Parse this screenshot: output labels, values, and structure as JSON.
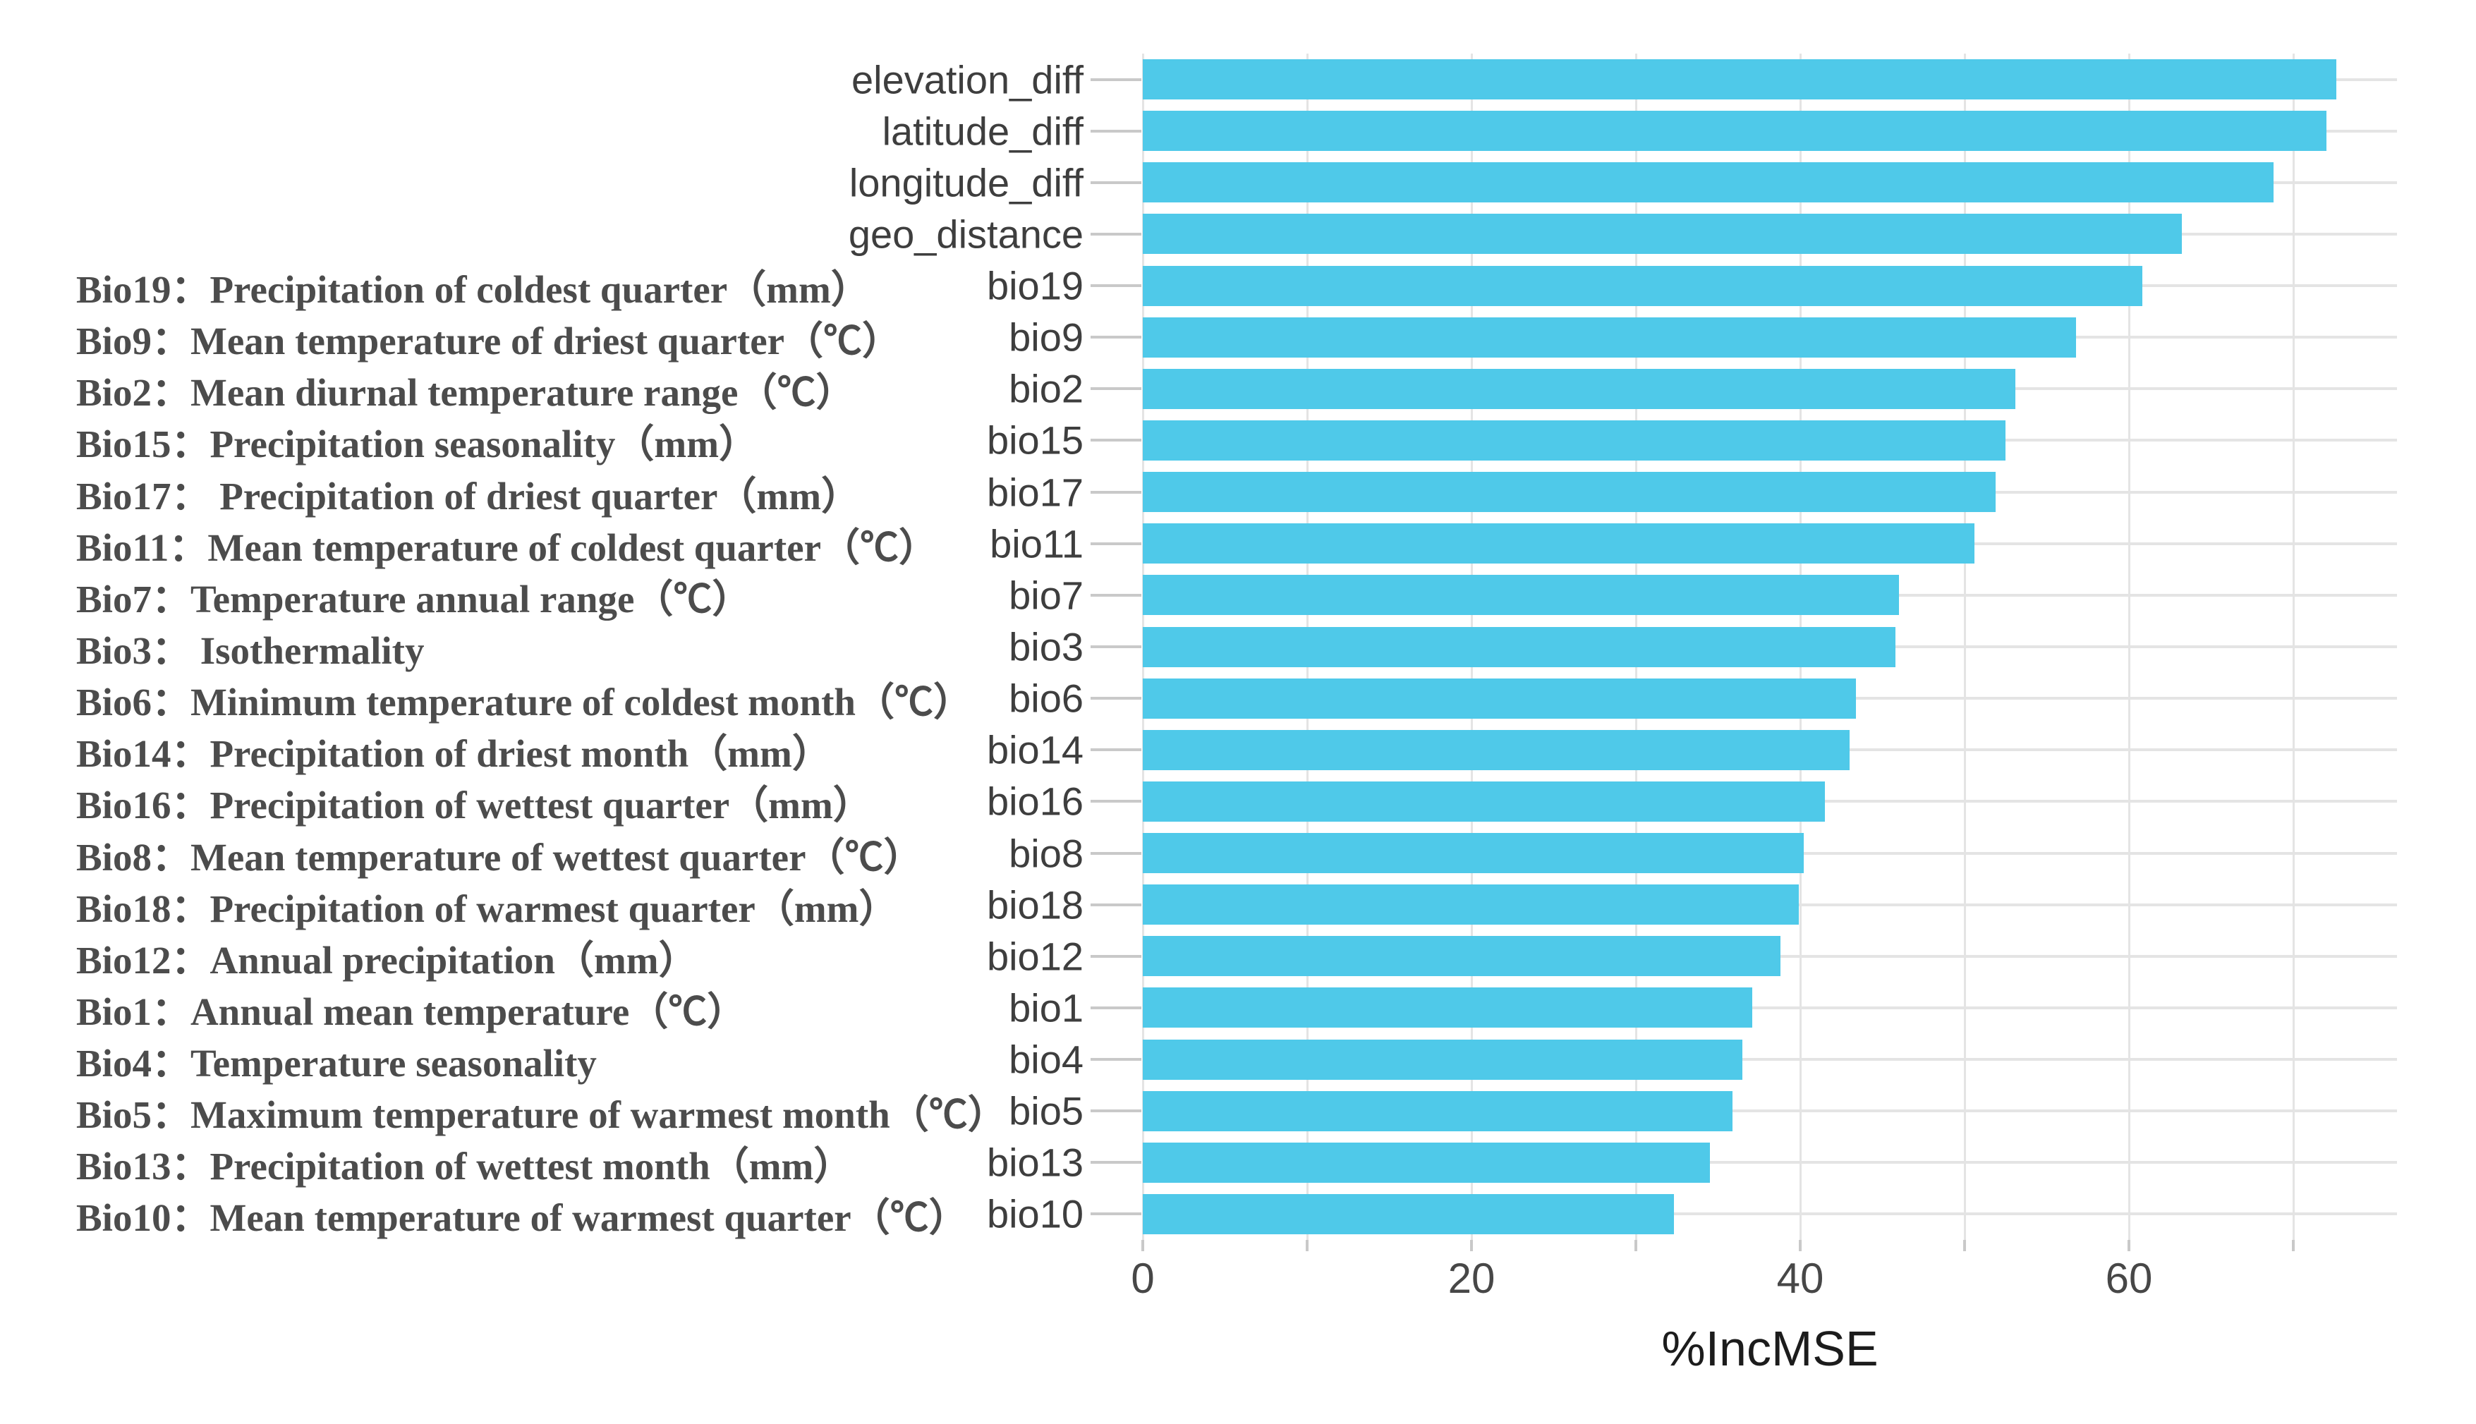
{
  "chart_data": {
    "type": "bar",
    "orientation": "horizontal",
    "title": "",
    "xlabel": "%IncMSE",
    "ylabel": "",
    "xlim": [
      0,
      76
    ],
    "x_ticks": [
      "0",
      "20",
      "40",
      "60"
    ],
    "x_tick_values": [
      0,
      20,
      40,
      60
    ],
    "grid_interval": 10,
    "grid": true,
    "legend_position": "none",
    "categories": [
      "elevation_diff",
      "latitude_diff",
      "longitude_diff",
      "geo_distance",
      "bio19",
      "bio9",
      "bio2",
      "bio15",
      "bio17",
      "bio11",
      "bio7",
      "bio3",
      "bio6",
      "bio14",
      "bio16",
      "bio8",
      "bio18",
      "bio12",
      "bio1",
      "bio4",
      "bio5",
      "bio13",
      "bio10"
    ],
    "values": [
      72.6,
      72.0,
      68.8,
      63.2,
      60.8,
      56.8,
      53.1,
      52.5,
      51.9,
      50.6,
      46.0,
      45.8,
      43.4,
      43.0,
      41.5,
      40.2,
      39.9,
      38.8,
      37.1,
      36.5,
      35.9,
      34.5,
      32.3
    ]
  },
  "left_legend": {
    "items": [
      "Bio19：Precipitation of coldest quarter（mm）",
      "Bio9：Mean temperature of driest quarter（℃）",
      "Bio2：Mean diurnal temperature range（℃）",
      "Bio15：Precipitation seasonality（mm）",
      "Bio17： Precipitation of driest quarter（mm）",
      "Bio11：Mean temperature of coldest quarter（℃）",
      "Bio7：Temperature annual range（℃）",
      "Bio3： Isothermality",
      "Bio6：Minimum temperature of coldest month（℃）",
      "Bio14：Precipitation of driest month（mm）",
      "Bio16：Precipitation of wettest quarter（mm）",
      "Bio8：Mean temperature of wettest quarter（℃）",
      "Bio18：Precipitation of warmest quarter（mm）",
      "Bio12：Annual precipitation（mm）",
      "Bio1：Annual mean temperature（℃）",
      "Bio4：Temperature seasonality",
      "Bio5：Maximum temperature of warmest month（℃）",
      "Bio13：Precipitation of wettest month（mm）",
      "Bio10：Mean temperature of warmest quarter（℃）"
    ]
  },
  "colors": {
    "bar": "#4fc9e9",
    "grid": "#e4e4e4",
    "tick": "#c9c9c9",
    "y_label_text": "#3e3e3e",
    "x_tick_text": "#474747",
    "description_text": "#4c4c4c",
    "axis_title_text": "#1c1c1c",
    "background": "#ffffff"
  }
}
